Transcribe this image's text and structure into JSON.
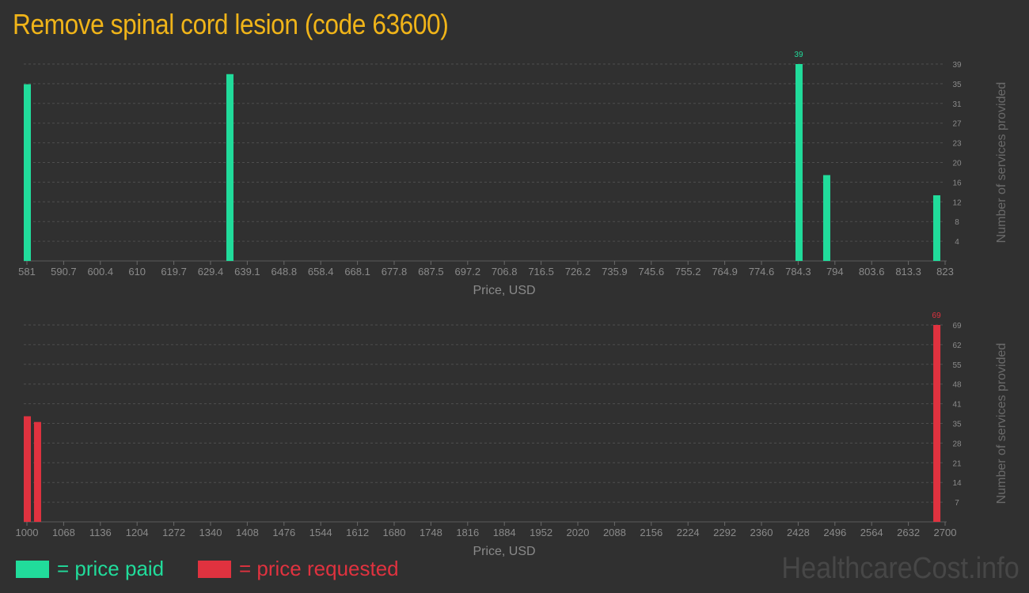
{
  "title": "Remove spinal cord lesion (code 63600)",
  "colors": {
    "paid": "#21dc9b",
    "requested": "#e0323f",
    "title": "#f0b419",
    "grid": "#505050",
    "text": "#8a8a8a"
  },
  "chart_data": [
    {
      "type": "bar",
      "xlabel": "Price, USD",
      "ylabel": "Number of services provided",
      "xlim": [
        581,
        823
      ],
      "ylim": [
        0,
        39
      ],
      "x_ticks": [
        "581",
        "590.7",
        "600.4",
        "610",
        "619.7",
        "629.4",
        "639.1",
        "648.8",
        "658.4",
        "668.1",
        "677.8",
        "687.5",
        "697.2",
        "706.8",
        "716.5",
        "726.2",
        "735.9",
        "745.6",
        "755.2",
        "764.9",
        "774.6",
        "784.3",
        "794",
        "803.6",
        "813.3",
        "823"
      ],
      "y_ticks": [
        "4",
        "8",
        "12",
        "16",
        "20",
        "23",
        "27",
        "31",
        "35",
        "39"
      ],
      "grid": true,
      "series": [
        {
          "name": "price paid",
          "color": "#21dc9b",
          "x": [
            581,
            634.4,
            784.4,
            791.7,
            820.7
          ],
          "values": [
            35,
            37,
            39,
            17,
            13
          ]
        }
      ],
      "max_label": "39"
    },
    {
      "type": "bar",
      "xlabel": "Price, USD",
      "ylabel": "Number of services provided",
      "xlim": [
        1000,
        2700
      ],
      "ylim": [
        0,
        69
      ],
      "x_ticks": [
        "1000",
        "1068",
        "1136",
        "1204",
        "1272",
        "1340",
        "1408",
        "1476",
        "1544",
        "1612",
        "1680",
        "1748",
        "1816",
        "1884",
        "1952",
        "2020",
        "2088",
        "2156",
        "2224",
        "2292",
        "2360",
        "2428",
        "2496",
        "2564",
        "2632",
        "2700"
      ],
      "y_ticks": [
        "7",
        "14",
        "21",
        "28",
        "35",
        "41",
        "48",
        "55",
        "62",
        "69"
      ],
      "grid": true,
      "series": [
        {
          "name": "price requested",
          "color": "#e0323f",
          "x": [
            1000,
            1019,
            2684
          ],
          "values": [
            37,
            35,
            69
          ]
        }
      ],
      "max_label": "69"
    }
  ],
  "legend": {
    "paid": "= price paid",
    "requested": "= price requested"
  },
  "brand": "HealthcareCost.info"
}
